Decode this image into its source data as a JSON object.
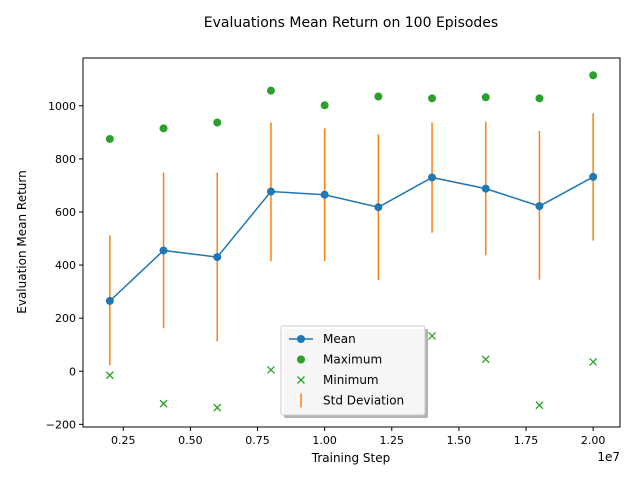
{
  "chart_data": {
    "type": "line",
    "title": "Evaluations Mean Return on 100 Episodes",
    "xlabel": "Training Step",
    "ylabel": "Evaluation Mean Return",
    "x_offset_label": "1e7",
    "x_scale": 10000000,
    "xlim": [
      0.1,
      2.1
    ],
    "ylim": [
      -210,
      1180
    ],
    "x_ticks": [
      0.25,
      0.5,
      0.75,
      1.0,
      1.25,
      1.5,
      1.75,
      2.0
    ],
    "x_tick_labels": [
      "0.25",
      "0.50",
      "0.75",
      "1.00",
      "1.25",
      "1.50",
      "1.75",
      "2.00"
    ],
    "y_ticks": [
      -200,
      0,
      200,
      400,
      600,
      800,
      1000
    ],
    "y_tick_labels": [
      "−200",
      "0",
      "200",
      "400",
      "600",
      "800",
      "1000"
    ],
    "grid": false,
    "legend_position": "bottom-center",
    "x": [
      0.2,
      0.4,
      0.6,
      0.8,
      1.0,
      1.2,
      1.4,
      1.6,
      1.8,
      2.0
    ],
    "series": [
      {
        "name": "Mean",
        "kind": "line-marker",
        "color": "#1f77b4",
        "values": [
          265,
          455,
          430,
          677,
          665,
          618,
          730,
          688,
          622,
          732
        ]
      },
      {
        "name": "Maximum",
        "kind": "dot",
        "color": "#2ca02c",
        "values": [
          875,
          915,
          937,
          1057,
          1002,
          1035,
          1028,
          1032,
          1028,
          1115
        ]
      },
      {
        "name": "Minimum",
        "kind": "x",
        "color": "#2ca02c",
        "values": [
          -15,
          -122,
          -137,
          5,
          null,
          null,
          133,
          45,
          -128,
          35
        ]
      },
      {
        "name": "Std Deviation",
        "kind": "errorbar",
        "color": "#ff7f0e",
        "low": [
          22,
          162,
          112,
          415,
          415,
          343,
          522,
          437,
          345,
          492
        ],
        "high": [
          512,
          748,
          748,
          937,
          915,
          893,
          937,
          940,
          905,
          972
        ]
      }
    ]
  }
}
